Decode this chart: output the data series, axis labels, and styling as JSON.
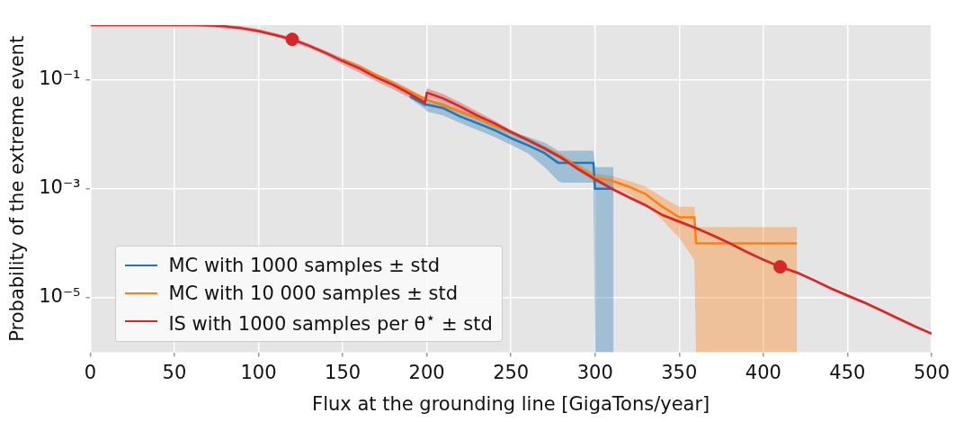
{
  "chart_data": {
    "type": "line",
    "xlabel": "Flux at the grounding line [GigaTons/year]",
    "ylabel": "Probability of the extreme event",
    "log": "y",
    "grid": true,
    "legend": "bottom left",
    "marker": "none",
    "xlim": [
      0,
      500
    ],
    "xticks": [
      0,
      50,
      100,
      150,
      200,
      250,
      300,
      350,
      400,
      450,
      500
    ],
    "ylim": [
      1e-06,
      1
    ],
    "yticks": [
      {
        "value": 0.1,
        "label": "10⁻¹"
      },
      {
        "value": 0.001,
        "label": "10⁻³"
      },
      {
        "value": 1e-05,
        "label": "10⁻⁵"
      }
    ],
    "series": [
      {
        "name": "MC with 1000 samples ± std",
        "color": "#1f77b4",
        "x": [
          190,
          199,
          200,
          210,
          220,
          230,
          240,
          250,
          260,
          270,
          278,
          280,
          290,
          299,
          300,
          311
        ],
        "values": [
          0.05,
          0.035,
          0.035,
          0.03,
          0.021,
          0.016,
          0.012,
          0.0085,
          0.0063,
          0.0045,
          0.003,
          0.003,
          0.003,
          0.003,
          0.001,
          0.001
        ],
        "upper": [
          0.055,
          0.042,
          0.044,
          0.038,
          0.026,
          0.02,
          0.015,
          0.011,
          0.009,
          0.007,
          0.005,
          0.005,
          0.005,
          0.005,
          0.0025,
          0.0025
        ],
        "lower": [
          0.045,
          0.029,
          0.026,
          0.022,
          0.016,
          0.012,
          0.009,
          0.0064,
          0.0045,
          0.0025,
          0.0014,
          0.0013,
          0.0013,
          0.0013,
          1e-06,
          1e-06
        ]
      },
      {
        "name": "MC with 10 000 samples ± std",
        "color": "#ff7f0e",
        "x": [
          150,
          160,
          170,
          180,
          190,
          200,
          210,
          220,
          230,
          240,
          250,
          260,
          270,
          280,
          290,
          300,
          310,
          320,
          330,
          340,
          350,
          359,
          360,
          420
        ],
        "values": [
          0.23,
          0.17,
          0.12,
          0.085,
          0.06,
          0.043,
          0.034,
          0.026,
          0.02,
          0.0145,
          0.011,
          0.008,
          0.0055,
          0.0039,
          0.0025,
          0.0016,
          0.0014,
          0.0011,
          0.0008,
          0.00047,
          0.0003,
          0.0003,
          0.0001,
          0.0001
        ],
        "upper": [
          0.25,
          0.18,
          0.13,
          0.092,
          0.065,
          0.047,
          0.037,
          0.028,
          0.022,
          0.016,
          0.012,
          0.0087,
          0.006,
          0.0043,
          0.0028,
          0.0019,
          0.0017,
          0.0014,
          0.0011,
          0.0007,
          0.00047,
          0.00047,
          0.0002,
          0.0002
        ],
        "lower": [
          0.21,
          0.16,
          0.11,
          0.078,
          0.055,
          0.04,
          0.031,
          0.024,
          0.018,
          0.013,
          0.01,
          0.0073,
          0.005,
          0.0035,
          0.0022,
          0.0013,
          0.0011,
          0.0008,
          0.0005,
          0.00027,
          0.000125,
          5e-05,
          1e-06,
          1e-06
        ]
      },
      {
        "name": "IS with 1000 samples per θ$^{⋆}$ ± std",
        "color": "#d62728",
        "x": [
          0,
          60,
          70,
          80,
          90,
          100,
          110,
          120,
          130,
          140,
          150,
          160,
          170,
          180,
          190,
          199,
          200,
          210,
          220,
          230,
          240,
          250,
          260,
          270,
          280,
          290,
          300,
          310,
          320,
          330,
          340,
          350,
          360,
          370,
          380,
          390,
          400,
          410,
          420,
          430,
          440,
          450,
          460,
          470,
          480,
          490,
          500
        ],
        "values": [
          1,
          1,
          0.99,
          0.95,
          0.88,
          0.78,
          0.66,
          0.55,
          0.42,
          0.31,
          0.22,
          0.16,
          0.11,
          0.08,
          0.055,
          0.038,
          0.058,
          0.045,
          0.032,
          0.022,
          0.016,
          0.011,
          0.0078,
          0.0055,
          0.0037,
          0.0023,
          0.0015,
          0.001,
          0.0007,
          0.0005,
          0.00033,
          0.00025,
          0.00019,
          0.00014,
          0.0001,
          7e-05,
          5e-05,
          3.7e-05,
          2.9e-05,
          2.1e-05,
          1.5e-05,
          1.1e-05,
          8.2e-06,
          5.9e-06,
          4.2e-06,
          3e-06,
          2.2e-06
        ],
        "upper": [
          1,
          1,
          1,
          1,
          0.95,
          0.85,
          0.72,
          0.6,
          0.46,
          0.34,
          0.25,
          0.19,
          0.13,
          0.096,
          0.066,
          0.046,
          0.07,
          0.054,
          0.038,
          0.026,
          0.018,
          0.012,
          0.0085,
          0.006,
          0.004,
          0.0025,
          0.0016,
          0.0011,
          0.00075,
          0.00054,
          0.00035,
          0.00027,
          0.0002,
          0.00015,
          0.000107,
          7.5e-05,
          5.3e-05,
          4e-05,
          3.1e-05,
          2.2e-05,
          1.6e-05,
          1.17e-05,
          8.7e-06,
          6.3e-06,
          4.5e-06,
          3.2e-06,
          2.3e-06
        ],
        "lower": [
          1,
          1,
          0.92,
          0.88,
          0.81,
          0.72,
          0.61,
          0.5,
          0.38,
          0.28,
          0.19,
          0.135,
          0.093,
          0.067,
          0.046,
          0.032,
          0.048,
          0.038,
          0.027,
          0.019,
          0.014,
          0.01,
          0.0072,
          0.005,
          0.0034,
          0.0021,
          0.0014,
          0.00093,
          0.00065,
          0.00046,
          0.00031,
          0.00023,
          0.000178,
          0.00013,
          9.3e-05,
          6.5e-05,
          4.7e-05,
          3.5e-05,
          2.7e-05,
          2e-05,
          1.4e-05,
          1.03e-05,
          7.7e-06,
          5.5e-06,
          3.9e-06,
          2.8e-06,
          2.1e-06
        ]
      },
      {
        "type": "scatter",
        "marker": "circle",
        "color": "#d62728",
        "x": [
          120,
          410
        ],
        "values": [
          0.55,
          3.7e-05
        ]
      }
    ]
  }
}
